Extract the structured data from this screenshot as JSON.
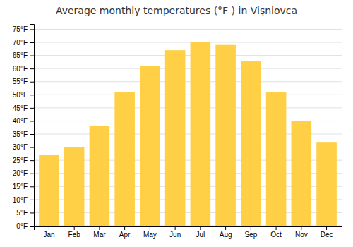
{
  "chart_data": {
    "type": "bar",
    "title": "Average monthly temperatures (°F ) in Vişniovca",
    "categories": [
      "Jan",
      "Feb",
      "Mar",
      "Apr",
      "May",
      "Jun",
      "Jul",
      "Aug",
      "Sep",
      "Oct",
      "Nov",
      "Dec"
    ],
    "values": [
      27,
      30,
      38,
      51,
      61,
      67,
      70,
      69,
      63,
      51,
      40,
      32
    ],
    "color": "#FFD045",
    "ylim": [
      0,
      77
    ],
    "yticks": [
      {
        "value": 0,
        "label": "0°F"
      },
      {
        "value": 5,
        "label": "5°F"
      },
      {
        "value": 10,
        "label": "10°F"
      },
      {
        "value": 15,
        "label": "15°F"
      },
      {
        "value": 20,
        "label": "20°F"
      },
      {
        "value": 25,
        "label": "25°F"
      },
      {
        "value": 30,
        "label": "30°F"
      },
      {
        "value": 35,
        "label": "35°F"
      },
      {
        "value": 40,
        "label": "40°F"
      },
      {
        "value": 45,
        "label": "45°F"
      },
      {
        "value": 50,
        "label": "50°F"
      },
      {
        "value": 55,
        "label": "55°F"
      },
      {
        "value": 60,
        "label": "60°F"
      },
      {
        "value": 65,
        "label": "65°F"
      },
      {
        "value": 70,
        "label": "70°F"
      },
      {
        "value": 75,
        "label": "75°F"
      }
    ],
    "grid": true
  }
}
